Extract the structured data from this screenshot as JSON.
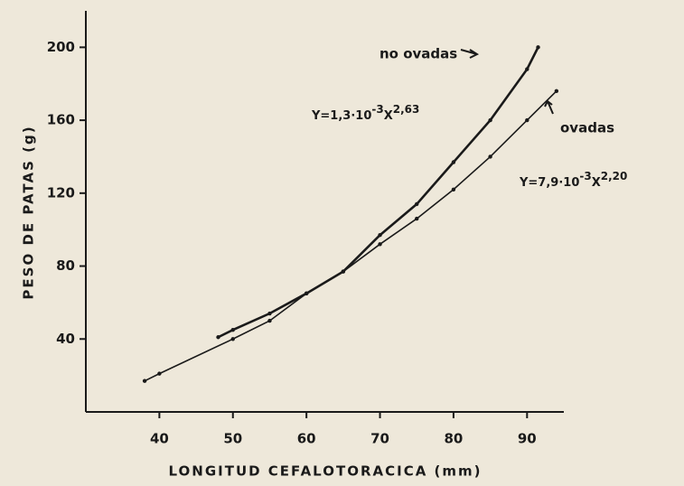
{
  "chart_data": {
    "type": "line",
    "xlabel": "LONGITUD CEFALOTORACICA (mm)",
    "ylabel": "PESO DE PATAS (g)",
    "xlim": [
      30,
      95
    ],
    "xticks": [
      40,
      50,
      60,
      70,
      80,
      90
    ],
    "ylim": [
      0,
      220
    ],
    "yticks": [
      40,
      80,
      120,
      160,
      200
    ],
    "series": [
      {
        "name": "no ovadas",
        "color": "#1a1a1a",
        "equation": [
          "Y=1,3·10",
          "-3",
          "X",
          "2,63"
        ],
        "x": [
          48,
          50,
          55,
          60,
          65,
          70,
          75,
          80,
          85,
          90,
          91.5
        ],
        "values": [
          41,
          45,
          54,
          65,
          77,
          97,
          114,
          137,
          160,
          188,
          200
        ]
      },
      {
        "name": "ovadas",
        "color": "#1a1a1a",
        "equation": [
          "Y=7,9·10",
          "-3",
          "X",
          "2,20"
        ],
        "x": [
          38,
          40,
          50,
          55,
          60,
          65,
          70,
          75,
          80,
          85,
          90,
          94
        ],
        "values": [
          17,
          21,
          40,
          50,
          65,
          77,
          92,
          106,
          122,
          140,
          160,
          176
        ]
      }
    ]
  }
}
